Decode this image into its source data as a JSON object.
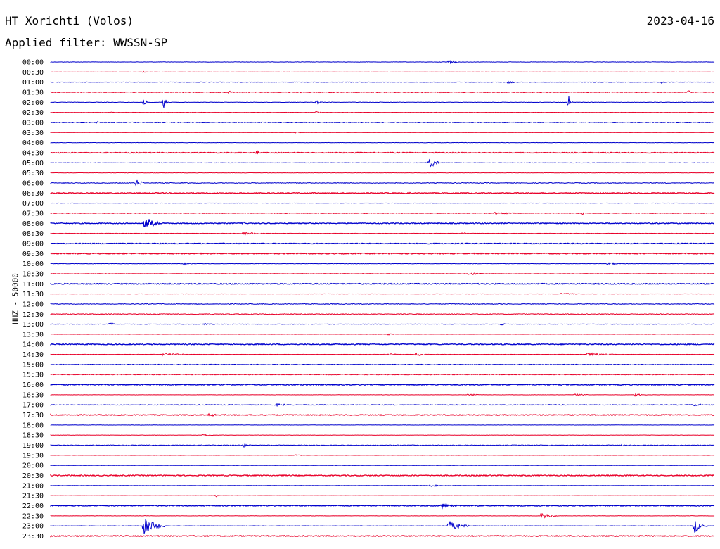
{
  "header": {
    "station": "HT Xorichti (Volos)",
    "date": "2023-04-16",
    "filter_label": "Applied filter: WWSSN-SP"
  },
  "colors": {
    "blue": "#0000cc",
    "red": "#e8002a"
  },
  "chart_data": {
    "type": "line",
    "title": "HT Xorichti (Volos)",
    "subtitle": "Applied filter: WWSSN-SP",
    "ylabel": "HHZ - 50000",
    "xlabel": "",
    "grid": false,
    "rows": [
      {
        "label": "00:00",
        "color": "blue",
        "noise": 0.4,
        "events": [
          [
            0.6,
            5,
            14
          ]
        ]
      },
      {
        "label": "00:30",
        "color": "red",
        "noise": 0.2,
        "events": [
          [
            0.14,
            2,
            3
          ]
        ]
      },
      {
        "label": "01:00",
        "color": "blue",
        "noise": 0.5,
        "events": [
          [
            0.69,
            2,
            14
          ],
          [
            0.92,
            2,
            12
          ]
        ]
      },
      {
        "label": "01:30",
        "color": "red",
        "noise": 0.8,
        "events": [
          [
            0.27,
            3,
            6
          ],
          [
            0.96,
            4,
            6
          ]
        ]
      },
      {
        "label": "02:00",
        "color": "blue",
        "noise": 0.4,
        "events": [
          [
            0.14,
            10,
            6
          ],
          [
            0.17,
            20,
            6
          ],
          [
            0.4,
            3,
            10
          ],
          [
            0.78,
            12,
            6
          ]
        ]
      },
      {
        "label": "02:30",
        "color": "red",
        "noise": 0.3,
        "events": [
          [
            0.09,
            2,
            6
          ],
          [
            0.4,
            2,
            10
          ]
        ]
      },
      {
        "label": "03:00",
        "color": "blue",
        "noise": 0.8,
        "events": [
          [
            0.07,
            2,
            10
          ]
        ]
      },
      {
        "label": "03:30",
        "color": "red",
        "noise": 0.2,
        "events": [
          [
            0.37,
            2,
            8
          ]
        ]
      },
      {
        "label": "04:00",
        "color": "blue",
        "noise": 0.3,
        "events": []
      },
      {
        "label": "04:30",
        "color": "red",
        "noise": 0.9,
        "events": [
          [
            0.31,
            4,
            10
          ]
        ]
      },
      {
        "label": "05:00",
        "color": "blue",
        "noise": 0.4,
        "events": [
          [
            0.57,
            12,
            14
          ]
        ]
      },
      {
        "label": "05:30",
        "color": "red",
        "noise": 0.3,
        "events": []
      },
      {
        "label": "06:00",
        "color": "blue",
        "noise": 0.7,
        "events": [
          [
            0.13,
            6,
            14
          ],
          [
            0.2,
            2,
            12
          ]
        ]
      },
      {
        "label": "06:30",
        "color": "red",
        "noise": 0.9,
        "events": [
          [
            0.54,
            2,
            6
          ]
        ]
      },
      {
        "label": "07:00",
        "color": "blue",
        "noise": 0.3,
        "events": []
      },
      {
        "label": "07:30",
        "color": "red",
        "noise": 0.7,
        "events": [
          [
            0.67,
            2,
            30
          ],
          [
            0.8,
            2,
            10
          ]
        ]
      },
      {
        "label": "08:00",
        "color": "blue",
        "noise": 0.9,
        "events": [
          [
            0.14,
            12,
            24
          ],
          [
            0.29,
            2,
            8
          ]
        ]
      },
      {
        "label": "08:30",
        "color": "red",
        "noise": 0.4,
        "events": [
          [
            0.29,
            2,
            50
          ],
          [
            0.62,
            2,
            10
          ]
        ]
      },
      {
        "label": "09:00",
        "color": "blue",
        "noise": 0.9,
        "events": []
      },
      {
        "label": "09:30",
        "color": "red",
        "noise": 1.0,
        "events": []
      },
      {
        "label": "10:00",
        "color": "blue",
        "noise": 0.4,
        "events": [
          [
            0.2,
            2,
            14
          ],
          [
            0.84,
            2,
            30
          ]
        ]
      },
      {
        "label": "10:30",
        "color": "red",
        "noise": 0.5,
        "events": [
          [
            0.63,
            2,
            30
          ]
        ]
      },
      {
        "label": "11:00",
        "color": "blue",
        "noise": 1.0,
        "events": []
      },
      {
        "label": "11:30",
        "color": "red",
        "noise": 0.3,
        "events": [
          [
            0.77,
            2,
            30
          ]
        ]
      },
      {
        "label": "12:00",
        "color": "blue",
        "noise": 0.7,
        "events": []
      },
      {
        "label": "12:30",
        "color": "red",
        "noise": 0.8,
        "events": []
      },
      {
        "label": "13:00",
        "color": "blue",
        "noise": 0.5,
        "events": [
          [
            0.09,
            2,
            12
          ],
          [
            0.23,
            2,
            20
          ],
          [
            0.68,
            2,
            10
          ]
        ]
      },
      {
        "label": "13:30",
        "color": "red",
        "noise": 0.3,
        "events": [
          [
            0.51,
            2,
            8
          ]
        ]
      },
      {
        "label": "14:00",
        "color": "blue",
        "noise": 1.0,
        "events": []
      },
      {
        "label": "14:30",
        "color": "red",
        "noise": 0.3,
        "events": [
          [
            0.17,
            3,
            30
          ],
          [
            0.51,
            2,
            20
          ],
          [
            0.55,
            3,
            20
          ],
          [
            0.81,
            3,
            40
          ]
        ]
      },
      {
        "label": "15:00",
        "color": "blue",
        "noise": 0.7,
        "events": []
      },
      {
        "label": "15:30",
        "color": "red",
        "noise": 0.8,
        "events": []
      },
      {
        "label": "16:00",
        "color": "blue",
        "noise": 1.0,
        "events": []
      },
      {
        "label": "16:30",
        "color": "red",
        "noise": 0.3,
        "events": [
          [
            0.63,
            2,
            20
          ],
          [
            0.79,
            2,
            20
          ],
          [
            0.88,
            2,
            20
          ]
        ]
      },
      {
        "label": "17:00",
        "color": "blue",
        "noise": 0.7,
        "events": [
          [
            0.34,
            2,
            20
          ],
          [
            0.97,
            2,
            20
          ]
        ]
      },
      {
        "label": "17:30",
        "color": "red",
        "noise": 0.9,
        "events": [
          [
            0.24,
            2,
            14
          ]
        ]
      },
      {
        "label": "18:00",
        "color": "blue",
        "noise": 0.3,
        "events": []
      },
      {
        "label": "18:30",
        "color": "red",
        "noise": 0.3,
        "events": [
          [
            0.23,
            2,
            20
          ]
        ]
      },
      {
        "label": "19:00",
        "color": "blue",
        "noise": 0.7,
        "events": [
          [
            0.29,
            4,
            8
          ],
          [
            0.86,
            2,
            6
          ]
        ]
      },
      {
        "label": "19:30",
        "color": "red",
        "noise": 0.3,
        "events": [
          [
            0.37,
            2,
            8
          ]
        ]
      },
      {
        "label": "20:00",
        "color": "blue",
        "noise": 0.3,
        "events": []
      },
      {
        "label": "20:30",
        "color": "red",
        "noise": 1.0,
        "events": []
      },
      {
        "label": "21:00",
        "color": "blue",
        "noise": 0.3,
        "events": [
          [
            0.57,
            2,
            40
          ]
        ]
      },
      {
        "label": "21:30",
        "color": "red",
        "noise": 0.2,
        "events": [
          [
            0.25,
            2,
            4
          ]
        ]
      },
      {
        "label": "22:00",
        "color": "blue",
        "noise": 0.9,
        "events": [
          [
            0.59,
            3,
            30
          ]
        ]
      },
      {
        "label": "22:30",
        "color": "red",
        "noise": 0.3,
        "events": [
          [
            0.74,
            5,
            24
          ]
        ]
      },
      {
        "label": "23:00",
        "color": "blue",
        "noise": 0.4,
        "events": [
          [
            0.14,
            14,
            30
          ],
          [
            0.6,
            9,
            30
          ],
          [
            0.97,
            10,
            20
          ]
        ]
      },
      {
        "label": "23:30",
        "color": "red",
        "noise": 1.0,
        "events": []
      }
    ]
  }
}
